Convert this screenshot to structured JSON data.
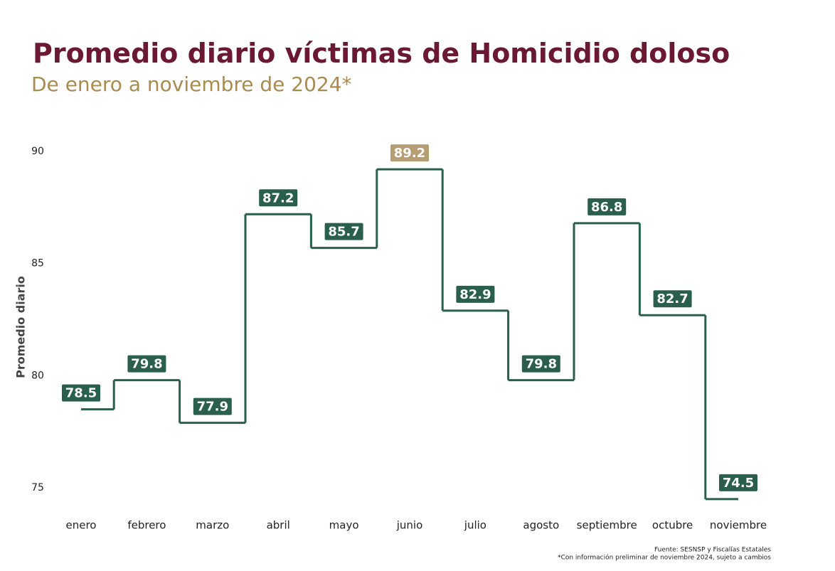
{
  "chart_data": {
    "type": "step",
    "title": "Promedio diario víctimas de Homicidio doloso",
    "subtitle": "De enero a noviembre de 2024*",
    "y_label": "Promedio diario",
    "categories": [
      "enero",
      "febrero",
      "marzo",
      "abril",
      "mayo",
      "junio",
      "julio",
      "agosto",
      "septiembre",
      "octubre",
      "noviembre"
    ],
    "values": [
      78.5,
      79.8,
      77.9,
      87.2,
      85.7,
      89.2,
      82.9,
      79.8,
      86.8,
      82.7,
      74.5
    ],
    "color": "#2a5f4d",
    "highlight_color": "#b59d74",
    "ylim": [
      74,
      91
    ],
    "yticks": [
      75,
      80,
      85,
      90
    ],
    "grid": false,
    "source": "Fuente: SESNSP y Fiscalías Estatales",
    "note": "*Con información preliminar de noviembre 2024, sujeto a cambios"
  }
}
